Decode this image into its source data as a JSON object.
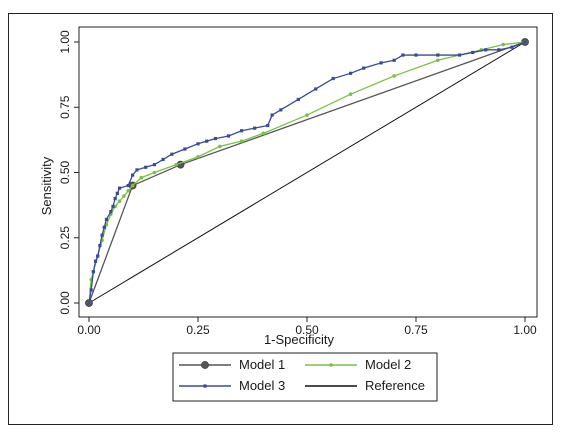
{
  "chart_data": {
    "type": "line",
    "xlabel": "1-Specificity",
    "ylabel": "Sensitivity",
    "xlim": [
      0,
      1
    ],
    "ylim": [
      0,
      1
    ],
    "x_ticks": [
      "0.00",
      "0.25",
      "0.50",
      "0.75",
      "1.00"
    ],
    "y_ticks": [
      "0.00",
      "0.25",
      "0.50",
      "0.75",
      "1.00"
    ],
    "grid": false,
    "legend_position": "bottom",
    "series": [
      {
        "name": "Model 1",
        "color": "#555555",
        "marker": "circle-large-sparse",
        "points": [
          [
            0,
            0
          ],
          [
            0.1,
            0.45
          ],
          [
            0.21,
            0.53
          ],
          [
            1,
            1
          ]
        ]
      },
      {
        "name": "Model 2",
        "color": "#7ac142",
        "marker": "small-dot",
        "points": [
          [
            0,
            0
          ],
          [
            0.005,
            0.09
          ],
          [
            0.01,
            0.12
          ],
          [
            0.02,
            0.18
          ],
          [
            0.03,
            0.24
          ],
          [
            0.04,
            0.3
          ],
          [
            0.05,
            0.34
          ],
          [
            0.06,
            0.37
          ],
          [
            0.07,
            0.39
          ],
          [
            0.08,
            0.41
          ],
          [
            0.09,
            0.43
          ],
          [
            0.1,
            0.45
          ],
          [
            0.12,
            0.48
          ],
          [
            0.15,
            0.5
          ],
          [
            0.2,
            0.53
          ],
          [
            0.25,
            0.56
          ],
          [
            0.3,
            0.6
          ],
          [
            0.35,
            0.62
          ],
          [
            0.4,
            0.65
          ],
          [
            0.5,
            0.72
          ],
          [
            0.6,
            0.8
          ],
          [
            0.7,
            0.87
          ],
          [
            0.8,
            0.93
          ],
          [
            0.9,
            0.97
          ],
          [
            0.95,
            0.99
          ],
          [
            1,
            1
          ]
        ]
      },
      {
        "name": "Model 3",
        "color": "#3a4a9a",
        "marker": "small-square",
        "points": [
          [
            0,
            0
          ],
          [
            0.005,
            0.05
          ],
          [
            0.01,
            0.12
          ],
          [
            0.015,
            0.16
          ],
          [
            0.02,
            0.18
          ],
          [
            0.025,
            0.22
          ],
          [
            0.03,
            0.26
          ],
          [
            0.035,
            0.29
          ],
          [
            0.04,
            0.32
          ],
          [
            0.05,
            0.35
          ],
          [
            0.055,
            0.37
          ],
          [
            0.06,
            0.4
          ],
          [
            0.065,
            0.42
          ],
          [
            0.07,
            0.44
          ],
          [
            0.09,
            0.45
          ],
          [
            0.1,
            0.49
          ],
          [
            0.11,
            0.51
          ],
          [
            0.13,
            0.52
          ],
          [
            0.15,
            0.53
          ],
          [
            0.17,
            0.55
          ],
          [
            0.19,
            0.57
          ],
          [
            0.22,
            0.59
          ],
          [
            0.25,
            0.61
          ],
          [
            0.27,
            0.62
          ],
          [
            0.29,
            0.63
          ],
          [
            0.32,
            0.64
          ],
          [
            0.35,
            0.66
          ],
          [
            0.38,
            0.67
          ],
          [
            0.41,
            0.68
          ],
          [
            0.42,
            0.72
          ],
          [
            0.44,
            0.74
          ],
          [
            0.48,
            0.78
          ],
          [
            0.52,
            0.82
          ],
          [
            0.56,
            0.86
          ],
          [
            0.6,
            0.88
          ],
          [
            0.63,
            0.9
          ],
          [
            0.67,
            0.92
          ],
          [
            0.7,
            0.93
          ],
          [
            0.72,
            0.95
          ],
          [
            0.75,
            0.95
          ],
          [
            0.8,
            0.95
          ],
          [
            0.85,
            0.95
          ],
          [
            0.88,
            0.96
          ],
          [
            0.91,
            0.97
          ],
          [
            0.94,
            0.97
          ],
          [
            0.97,
            0.98
          ],
          [
            1,
            1
          ]
        ]
      },
      {
        "name": "Reference",
        "color": "#111111",
        "marker": "none",
        "points": [
          [
            0,
            0
          ],
          [
            1,
            1
          ]
        ]
      }
    ]
  }
}
